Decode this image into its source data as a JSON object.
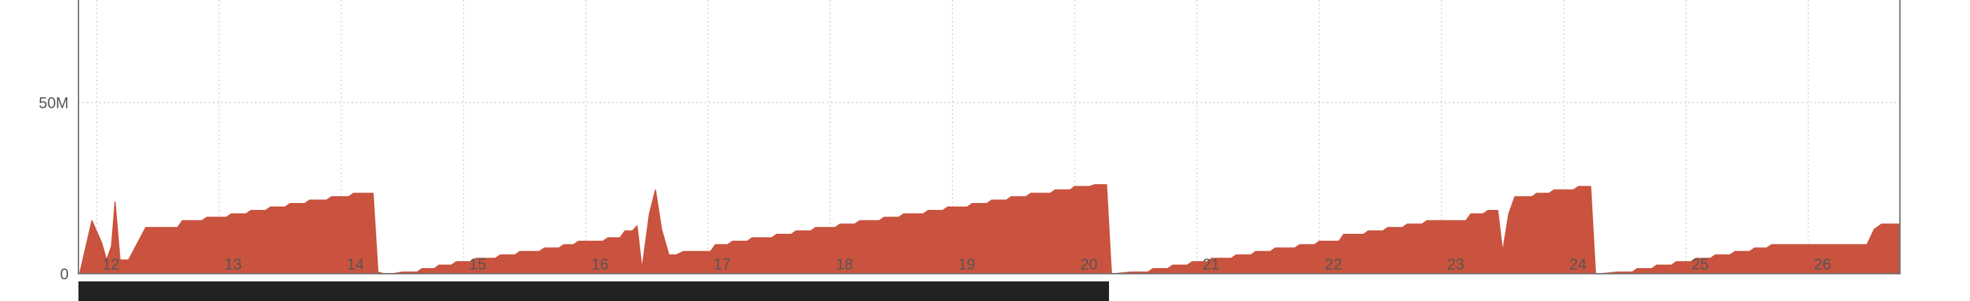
{
  "chart_data": {
    "type": "area",
    "title": "",
    "xlabel": "",
    "ylabel": "",
    "ylim": [
      0,
      80000000
    ],
    "xlim": [
      11.85,
      26.75
    ],
    "grid": true,
    "legend": "none",
    "colors": {
      "fill": "#c9533e",
      "grid": "#c8c8c8",
      "axis": "#777777",
      "text": "#555555",
      "navigator": "#222222"
    },
    "y_ticks": [
      {
        "value": 0,
        "label": "0"
      },
      {
        "value": 50000000,
        "label": "50M"
      }
    ],
    "x_ticks": [
      {
        "value": 12,
        "label": "12"
      },
      {
        "value": 13,
        "label": "13"
      },
      {
        "value": 14,
        "label": "14"
      },
      {
        "value": 15,
        "label": "15"
      },
      {
        "value": 16,
        "label": "16"
      },
      {
        "value": 17,
        "label": "17"
      },
      {
        "value": 18,
        "label": "18"
      },
      {
        "value": 19,
        "label": "19"
      },
      {
        "value": 20,
        "label": "20"
      },
      {
        "value": 21,
        "label": "21"
      },
      {
        "value": 22,
        "label": "22"
      },
      {
        "value": 23,
        "label": "23"
      },
      {
        "value": 24,
        "label": "24"
      },
      {
        "value": 25,
        "label": "25"
      },
      {
        "value": 26,
        "label": "26"
      }
    ],
    "navigator_range": [
      11.85,
      20.28
    ],
    "series": [
      {
        "points": [
          [
            11.86,
            0
          ],
          [
            11.96,
            15500000
          ],
          [
            12.04,
            9000000
          ],
          [
            12.08,
            4000000
          ],
          [
            12.12,
            8000000
          ],
          [
            12.15,
            21000000
          ],
          [
            12.19,
            4000000
          ],
          [
            12.26,
            4000000
          ],
          [
            12.4,
            13500000
          ],
          [
            12.55,
            13500000
          ],
          [
            12.66,
            13500000
          ],
          [
            12.7,
            15500000
          ],
          [
            12.86,
            15500000
          ],
          [
            12.9,
            16500000
          ],
          [
            13.06,
            16500000
          ],
          [
            13.1,
            17500000
          ],
          [
            13.22,
            17500000
          ],
          [
            13.26,
            18500000
          ],
          [
            13.38,
            18500000
          ],
          [
            13.42,
            19500000
          ],
          [
            13.54,
            19500000
          ],
          [
            13.58,
            20500000
          ],
          [
            13.7,
            20500000
          ],
          [
            13.74,
            21500000
          ],
          [
            13.88,
            21500000
          ],
          [
            13.92,
            22500000
          ],
          [
            14.06,
            22500000
          ],
          [
            14.1,
            23500000
          ],
          [
            14.26,
            23500000
          ],
          [
            14.3,
            500000
          ],
          [
            14.35,
            0
          ],
          [
            14.42,
            0
          ],
          [
            14.5,
            500000
          ],
          [
            14.62,
            500000
          ],
          [
            14.66,
            1500000
          ],
          [
            14.76,
            1500000
          ],
          [
            14.8,
            2500000
          ],
          [
            14.9,
            2500000
          ],
          [
            14.94,
            3500000
          ],
          [
            15.06,
            3500000
          ],
          [
            15.1,
            4500000
          ],
          [
            15.26,
            4500000
          ],
          [
            15.3,
            5500000
          ],
          [
            15.42,
            5500000
          ],
          [
            15.46,
            6500000
          ],
          [
            15.62,
            6500000
          ],
          [
            15.66,
            7500000
          ],
          [
            15.78,
            7500000
          ],
          [
            15.82,
            8500000
          ],
          [
            15.9,
            8500000
          ],
          [
            15.94,
            9500000
          ],
          [
            16.14,
            9500000
          ],
          [
            16.18,
            10500000
          ],
          [
            16.28,
            10500000
          ],
          [
            16.32,
            12500000
          ],
          [
            16.38,
            12500000
          ],
          [
            16.42,
            14000000
          ],
          [
            16.46,
            1500000
          ],
          [
            16.52,
            17500000
          ],
          [
            16.57,
            24500000
          ],
          [
            16.62,
            13000000
          ],
          [
            16.68,
            5500000
          ],
          [
            16.74,
            5500000
          ],
          [
            16.8,
            6500000
          ],
          [
            17.02,
            6500000
          ],
          [
            17.06,
            8500000
          ],
          [
            17.16,
            8500000
          ],
          [
            17.2,
            9500000
          ],
          [
            17.32,
            9500000
          ],
          [
            17.36,
            10500000
          ],
          [
            17.52,
            10500000
          ],
          [
            17.56,
            11500000
          ],
          [
            17.68,
            11500000
          ],
          [
            17.72,
            12500000
          ],
          [
            17.84,
            12500000
          ],
          [
            17.88,
            13500000
          ],
          [
            18.04,
            13500000
          ],
          [
            18.08,
            14500000
          ],
          [
            18.2,
            14500000
          ],
          [
            18.24,
            15500000
          ],
          [
            18.4,
            15500000
          ],
          [
            18.44,
            16500000
          ],
          [
            18.56,
            16500000
          ],
          [
            18.6,
            17500000
          ],
          [
            18.76,
            17500000
          ],
          [
            18.8,
            18500000
          ],
          [
            18.92,
            18500000
          ],
          [
            18.96,
            19500000
          ],
          [
            19.12,
            19500000
          ],
          [
            19.16,
            20500000
          ],
          [
            19.28,
            20500000
          ],
          [
            19.32,
            21500000
          ],
          [
            19.44,
            21500000
          ],
          [
            19.48,
            22500000
          ],
          [
            19.6,
            22500000
          ],
          [
            19.64,
            23500000
          ],
          [
            19.8,
            23500000
          ],
          [
            19.84,
            24500000
          ],
          [
            19.96,
            24500000
          ],
          [
            20.0,
            25500000
          ],
          [
            20.12,
            25500000
          ],
          [
            20.16,
            26000000
          ],
          [
            20.26,
            26000000
          ],
          [
            20.3,
            0
          ],
          [
            20.32,
            0
          ],
          [
            20.46,
            500000
          ],
          [
            20.6,
            500000
          ],
          [
            20.64,
            1500000
          ],
          [
            20.76,
            1500000
          ],
          [
            20.8,
            2500000
          ],
          [
            20.92,
            2500000
          ],
          [
            20.96,
            3500000
          ],
          [
            21.08,
            3500000
          ],
          [
            21.12,
            4500000
          ],
          [
            21.28,
            4500000
          ],
          [
            21.32,
            5500000
          ],
          [
            21.44,
            5500000
          ],
          [
            21.48,
            6500000
          ],
          [
            21.6,
            6500000
          ],
          [
            21.64,
            7500000
          ],
          [
            21.8,
            7500000
          ],
          [
            21.84,
            8500000
          ],
          [
            21.96,
            8500000
          ],
          [
            22.0,
            9500000
          ],
          [
            22.16,
            9500000
          ],
          [
            22.2,
            11500000
          ],
          [
            22.36,
            11500000
          ],
          [
            22.4,
            12500000
          ],
          [
            22.52,
            12500000
          ],
          [
            22.56,
            13500000
          ],
          [
            22.68,
            13500000
          ],
          [
            22.72,
            14500000
          ],
          [
            22.84,
            14500000
          ],
          [
            22.88,
            15500000
          ],
          [
            23.2,
            15500000
          ],
          [
            23.24,
            17500000
          ],
          [
            23.34,
            17500000
          ],
          [
            23.38,
            18500000
          ],
          [
            23.46,
            18500000
          ],
          [
            23.5,
            6500000
          ],
          [
            23.55,
            17500000
          ],
          [
            23.6,
            22500000
          ],
          [
            23.74,
            22500000
          ],
          [
            23.78,
            23500000
          ],
          [
            23.88,
            23500000
          ],
          [
            23.92,
            24500000
          ],
          [
            24.08,
            24500000
          ],
          [
            24.12,
            25500000
          ],
          [
            24.22,
            25500000
          ],
          [
            24.26,
            0
          ],
          [
            24.3,
            0
          ],
          [
            24.44,
            500000
          ],
          [
            24.56,
            500000
          ],
          [
            24.6,
            1500000
          ],
          [
            24.72,
            1500000
          ],
          [
            24.76,
            2500000
          ],
          [
            24.88,
            2500000
          ],
          [
            24.92,
            3500000
          ],
          [
            25.04,
            3500000
          ],
          [
            25.08,
            4500000
          ],
          [
            25.2,
            4500000
          ],
          [
            25.24,
            5500000
          ],
          [
            25.36,
            5500000
          ],
          [
            25.4,
            6500000
          ],
          [
            25.52,
            6500000
          ],
          [
            25.56,
            7500000
          ],
          [
            25.66,
            7500000
          ],
          [
            25.7,
            8500000
          ],
          [
            26.48,
            8500000
          ],
          [
            26.54,
            13000000
          ],
          [
            26.6,
            14500000
          ],
          [
            26.74,
            14500000
          ],
          [
            26.75,
            0
          ]
        ]
      }
    ]
  }
}
